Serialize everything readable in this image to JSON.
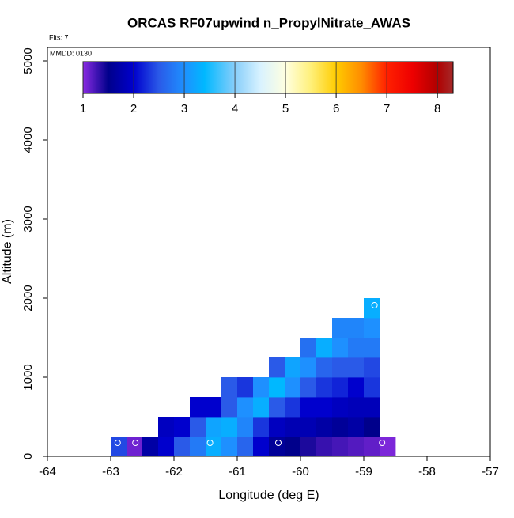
{
  "chart_data": {
    "type": "heatmap",
    "title": "ORCAS RF07upwind n_PropylNitrate_AWAS",
    "annotations": [
      "Flts: 7",
      "MMDD: 0130"
    ],
    "xlabel": "Longitude (deg E)",
    "ylabel": "Altitude (m)",
    "xlim": [
      -64,
      -57
    ],
    "xticks": [
      -64,
      -63,
      -62,
      -61,
      -60,
      -59,
      -58,
      -57
    ],
    "ylim": [
      0,
      5170
    ],
    "yticks": [
      0,
      1000,
      2000,
      3000,
      4000,
      5000
    ],
    "xbins": [
      -63,
      -62.75,
      -62.5,
      -62.25,
      -62,
      -61.75,
      -61.5,
      -61.25,
      -61,
      -60.75,
      -60.5,
      -60.25,
      -60,
      -59.75,
      -59.5,
      -59.25,
      -59,
      -58.75,
      -58.5
    ],
    "ybins": [
      0,
      250,
      500,
      750,
      1000,
      1250,
      1500,
      1750,
      2000
    ],
    "z": [
      [
        2.4,
        1.1,
        1.7,
        2.0,
        2.5,
        2.8,
        3.3,
        3.0,
        2.6,
        2.0,
        1.6,
        1.5,
        1.4,
        1.3,
        1.25,
        1.2,
        1.15,
        1.05
      ],
      [
        null,
        null,
        null,
        1.9,
        2.0,
        2.5,
        3.2,
        3.3,
        2.9,
        2.3,
        1.9,
        1.8,
        1.8,
        1.7,
        1.6,
        1.7,
        1.5,
        null
      ],
      [
        null,
        null,
        null,
        null,
        null,
        2.0,
        2.0,
        2.5,
        3.0,
        3.3,
        2.5,
        2.3,
        2.0,
        2.0,
        1.9,
        1.85,
        1.85,
        null
      ],
      [
        null,
        null,
        null,
        null,
        null,
        null,
        null,
        2.5,
        2.3,
        3.0,
        3.4,
        3.0,
        2.5,
        2.3,
        2.2,
        2.0,
        2.3,
        null
      ],
      [
        null,
        null,
        null,
        null,
        null,
        null,
        null,
        null,
        null,
        null,
        2.5,
        3.2,
        3.0,
        2.6,
        2.5,
        2.5,
        2.4,
        null
      ],
      [
        null,
        null,
        null,
        null,
        null,
        null,
        null,
        null,
        null,
        null,
        null,
        null,
        2.7,
        3.3,
        3.0,
        2.8,
        2.8,
        null
      ],
      [
        null,
        null,
        null,
        null,
        null,
        null,
        null,
        null,
        null,
        null,
        null,
        null,
        null,
        null,
        2.9,
        2.9,
        3.0,
        null
      ],
      [
        null,
        null,
        null,
        null,
        null,
        null,
        null,
        null,
        null,
        null,
        null,
        null,
        null,
        null,
        null,
        null,
        3.3,
        null
      ]
    ],
    "points": {
      "x": [
        -62.89,
        -62.61,
        -61.43,
        -60.35,
        -58.71,
        -58.83
      ],
      "y": [
        170,
        170,
        170,
        170,
        170,
        1910
      ],
      "color": "#ffffff"
    },
    "colorbar": {
      "lim": [
        1,
        8.31
      ],
      "ticks": [
        1,
        2,
        3,
        4,
        5,
        6,
        7,
        8
      ],
      "colorscale": [
        [
          1,
          "#8a2be2"
        ],
        [
          1.5,
          "#00008b"
        ],
        [
          2,
          "#0000cd"
        ],
        [
          2.5,
          "#2a5ae8"
        ],
        [
          3,
          "#1e90ff"
        ],
        [
          3.4,
          "#00b8ff"
        ],
        [
          4,
          "#87cefa"
        ],
        [
          4.5,
          "#d8f2ff"
        ],
        [
          5,
          "#ffffe0"
        ],
        [
          5.5,
          "#fff07a"
        ],
        [
          6,
          "#ffcc00"
        ],
        [
          6.5,
          "#ff8c00"
        ],
        [
          7,
          "#ff2000"
        ],
        [
          7.5,
          "#ee0000"
        ],
        [
          8,
          "#b00000"
        ],
        [
          8.31,
          "#a52a2a"
        ]
      ]
    }
  }
}
